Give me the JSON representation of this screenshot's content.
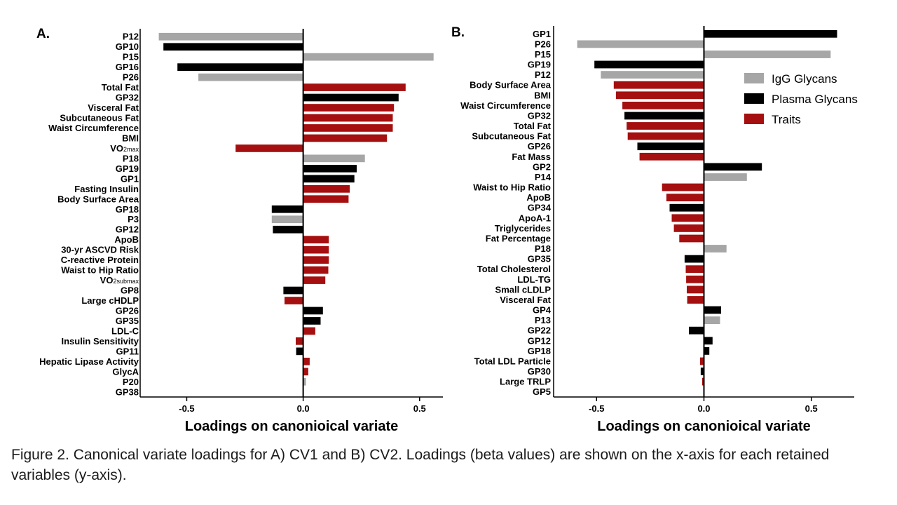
{
  "chart_data": [
    {
      "type": "bar",
      "orientation": "horizontal",
      "panel_label": "A.",
      "xlabel": "Loadings on canonioical variate",
      "xlim": [
        -0.7,
        0.6
      ],
      "xticks": [
        -0.5,
        0.0,
        0.5
      ],
      "xtick_labels": [
        "-0.5",
        "0.0",
        "0.5"
      ],
      "categories": [
        {
          "label": "P12",
          "value": -0.62,
          "group": "IgG Glycans"
        },
        {
          "label": "GP10",
          "value": -0.6,
          "group": "Plasma Glycans"
        },
        {
          "label": "P15",
          "value": 0.56,
          "group": "IgG Glycans"
        },
        {
          "label": "GP16",
          "value": -0.54,
          "group": "Plasma Glycans"
        },
        {
          "label": "P26",
          "value": -0.45,
          "group": "IgG Glycans"
        },
        {
          "label": "Total Fat",
          "value": 0.44,
          "group": "Traits"
        },
        {
          "label": "GP32",
          "value": 0.41,
          "group": "Plasma Glycans"
        },
        {
          "label": "Visceral Fat",
          "value": 0.39,
          "group": "Traits"
        },
        {
          "label": "Subcutaneous Fat",
          "value": 0.385,
          "group": "Traits"
        },
        {
          "label": "Waist Circumference",
          "value": 0.385,
          "group": "Traits"
        },
        {
          "label": "BMI",
          "value": 0.36,
          "group": "Traits"
        },
        {
          "label": "VO",
          "sub": "2max",
          "value": -0.29,
          "group": "Traits"
        },
        {
          "label": "P18",
          "value": 0.265,
          "group": "IgG Glycans"
        },
        {
          "label": "GP19",
          "value": 0.23,
          "group": "Plasma Glycans"
        },
        {
          "label": "GP1",
          "value": 0.22,
          "group": "Plasma Glycans"
        },
        {
          "label": "Fasting Insulin",
          "value": 0.2,
          "group": "Traits"
        },
        {
          "label": "Body Surface Area",
          "value": 0.195,
          "group": "Traits"
        },
        {
          "label": "GP18",
          "value": -0.135,
          "group": "Plasma Glycans"
        },
        {
          "label": "P3",
          "value": -0.135,
          "group": "IgG Glycans"
        },
        {
          "label": "GP12",
          "value": -0.13,
          "group": "Plasma Glycans"
        },
        {
          "label": "ApoB",
          "value": 0.11,
          "group": "Traits"
        },
        {
          "label": "30-yr ASCVD Risk",
          "value": 0.11,
          "group": "Traits"
        },
        {
          "label": "C-reactive Protein",
          "value": 0.11,
          "group": "Traits"
        },
        {
          "label": "Waist to Hip Ratio",
          "value": 0.108,
          "group": "Traits"
        },
        {
          "label": "VO",
          "sub": "2submax",
          "value": 0.095,
          "group": "Traits"
        },
        {
          "label": "GP8",
          "value": -0.085,
          "group": "Plasma Glycans"
        },
        {
          "label": "Large cHDLP",
          "value": -0.08,
          "group": "Traits"
        },
        {
          "label": "GP26",
          "value": 0.085,
          "group": "Plasma Glycans"
        },
        {
          "label": "GP35",
          "value": 0.075,
          "group": "Plasma Glycans"
        },
        {
          "label": "LDL-C",
          "value": 0.052,
          "group": "Traits"
        },
        {
          "label": "Insulin Sensitivity",
          "value": -0.032,
          "group": "Traits"
        },
        {
          "label": "GP11",
          "value": -0.03,
          "group": "Plasma Glycans"
        },
        {
          "label": "Hepatic Lipase Activity",
          "value": 0.028,
          "group": "Traits"
        },
        {
          "label": "GlycA",
          "value": 0.022,
          "group": "Traits"
        },
        {
          "label": "P20",
          "value": 0.012,
          "group": "IgG Glycans"
        },
        {
          "label": "GP38",
          "value": 0.0,
          "group": "Plasma Glycans"
        }
      ]
    },
    {
      "type": "bar",
      "orientation": "horizontal",
      "panel_label": "B.",
      "xlabel": "Loadings on canonioical variate",
      "xlim": [
        -0.7,
        0.7
      ],
      "xticks": [
        -0.5,
        0.0,
        0.5
      ],
      "xtick_labels": [
        "-0.5",
        "0.0",
        "0.5"
      ],
      "categories": [
        {
          "label": "GP1",
          "value": 0.62,
          "group": "Plasma Glycans"
        },
        {
          "label": "P26",
          "value": -0.59,
          "group": "IgG Glycans"
        },
        {
          "label": "P15",
          "value": 0.59,
          "group": "IgG Glycans"
        },
        {
          "label": "GP19",
          "value": -0.51,
          "group": "Plasma Glycans"
        },
        {
          "label": "P12",
          "value": -0.48,
          "group": "IgG Glycans"
        },
        {
          "label": "Body Surface Area",
          "value": -0.42,
          "group": "Traits"
        },
        {
          "label": "BMI",
          "value": -0.41,
          "group": "Traits"
        },
        {
          "label": "Waist Circumference",
          "value": -0.38,
          "group": "Traits"
        },
        {
          "label": "GP32",
          "value": -0.37,
          "group": "Plasma Glycans"
        },
        {
          "label": "Total Fat",
          "value": -0.36,
          "group": "Traits"
        },
        {
          "label": "Subcutaneous Fat",
          "value": -0.355,
          "group": "Traits"
        },
        {
          "label": "GP26",
          "value": -0.31,
          "group": "Plasma Glycans"
        },
        {
          "label": "Fat Mass",
          "value": -0.3,
          "group": "Traits"
        },
        {
          "label": "GP2",
          "value": 0.27,
          "group": "Plasma Glycans"
        },
        {
          "label": "P14",
          "value": 0.2,
          "group": "IgG Glycans"
        },
        {
          "label": "Waist to Hip Ratio",
          "value": -0.195,
          "group": "Traits"
        },
        {
          "label": "ApoB",
          "value": -0.175,
          "group": "Traits"
        },
        {
          "label": "GP34",
          "value": -0.16,
          "group": "Plasma Glycans"
        },
        {
          "label": "ApoA-1",
          "value": -0.15,
          "group": "Traits"
        },
        {
          "label": "Triglycerides",
          "value": -0.14,
          "group": "Traits"
        },
        {
          "label": "Fat Percentage",
          "value": -0.115,
          "group": "Traits"
        },
        {
          "label": "P18",
          "value": 0.105,
          "group": "IgG Glycans"
        },
        {
          "label": "GP35",
          "value": -0.09,
          "group": "Plasma Glycans"
        },
        {
          "label": "Total Cholesterol",
          "value": -0.085,
          "group": "Traits"
        },
        {
          "label": "LDL-TG",
          "value": -0.083,
          "group": "Traits"
        },
        {
          "label": "Small cLDLP",
          "value": -0.08,
          "group": "Traits"
        },
        {
          "label": "Visceral Fat",
          "value": -0.078,
          "group": "Traits"
        },
        {
          "label": "GP4",
          "value": 0.08,
          "group": "Plasma Glycans"
        },
        {
          "label": "P13",
          "value": 0.075,
          "group": "IgG Glycans"
        },
        {
          "label": "GP22",
          "value": -0.07,
          "group": "Plasma Glycans"
        },
        {
          "label": "GP12",
          "value": 0.04,
          "group": "Plasma Glycans"
        },
        {
          "label": "GP18",
          "value": 0.025,
          "group": "Plasma Glycans"
        },
        {
          "label": "Total LDL Particle",
          "value": -0.018,
          "group": "Traits"
        },
        {
          "label": "GP30",
          "value": -0.015,
          "group": "Plasma Glycans"
        },
        {
          "label": "Large TRLP",
          "value": -0.008,
          "group": "Traits"
        },
        {
          "label": "GP5",
          "value": 0.0,
          "group": "Plasma Glycans"
        }
      ]
    }
  ],
  "legend": [
    {
      "label": "IgG Glycans",
      "color": "#a6a6a6"
    },
    {
      "label": "Plasma Glycans",
      "color": "#000000"
    },
    {
      "label": "Traits",
      "color": "#a50f0f"
    }
  ],
  "caption": "Figure 2. Canonical variate loadings for A) CV1 and B) CV2. Loadings (beta values) are shown on the x-axis for each retained variables (y-axis)."
}
